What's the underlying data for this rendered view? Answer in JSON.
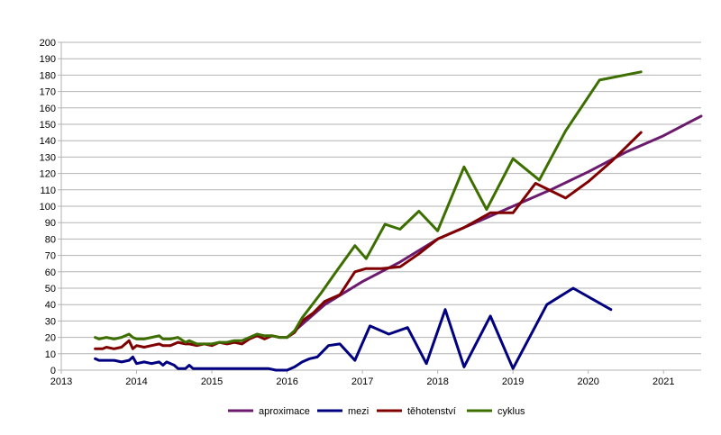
{
  "chart_data": {
    "type": "line",
    "title": "",
    "xlabel": "",
    "ylabel": "",
    "xlim": [
      2013,
      2021.5
    ],
    "ylim": [
      0,
      200
    ],
    "grid": "horizontal",
    "legend_position": "bottom",
    "x_ticks": [
      "2013",
      "2014",
      "2015",
      "2016",
      "2017",
      "2018",
      "2019",
      "2020",
      "2021"
    ],
    "y_ticks": [
      "0",
      "10",
      "20",
      "30",
      "40",
      "50",
      "60",
      "70",
      "80",
      "90",
      "100",
      "110",
      "120",
      "130",
      "140",
      "150",
      "160",
      "170",
      "180",
      "190",
      "200"
    ],
    "series": [
      {
        "name": "aproximace",
        "color": "#6c1a6e",
        "points": [
          [
            2016.0,
            20
          ],
          [
            2016.5,
            40
          ],
          [
            2017.0,
            54
          ],
          [
            2017.5,
            66
          ],
          [
            2018.0,
            80
          ],
          [
            2018.5,
            90
          ],
          [
            2019.0,
            100
          ],
          [
            2019.5,
            110
          ],
          [
            2020.0,
            121
          ],
          [
            2020.5,
            133
          ],
          [
            2021.0,
            143
          ],
          [
            2021.5,
            155
          ]
        ]
      },
      {
        "name": "mezi",
        "color": "#000080",
        "points": [
          [
            2013.45,
            7
          ],
          [
            2013.5,
            6
          ],
          [
            2013.6,
            6
          ],
          [
            2013.7,
            6
          ],
          [
            2013.8,
            5
          ],
          [
            2013.9,
            6
          ],
          [
            2013.95,
            8
          ],
          [
            2014.0,
            4
          ],
          [
            2014.1,
            5
          ],
          [
            2014.2,
            4
          ],
          [
            2014.3,
            5
          ],
          [
            2014.35,
            3
          ],
          [
            2014.4,
            5
          ],
          [
            2014.5,
            3
          ],
          [
            2014.55,
            1
          ],
          [
            2014.65,
            1
          ],
          [
            2014.7,
            3
          ],
          [
            2014.75,
            1
          ],
          [
            2014.85,
            1
          ],
          [
            2014.95,
            1
          ],
          [
            2015.0,
            1
          ],
          [
            2015.05,
            1
          ],
          [
            2015.15,
            1
          ],
          [
            2015.25,
            1
          ],
          [
            2015.35,
            1
          ],
          [
            2015.45,
            1
          ],
          [
            2015.55,
            1
          ],
          [
            2015.65,
            1
          ],
          [
            2015.75,
            1
          ],
          [
            2015.85,
            0
          ],
          [
            2015.95,
            0
          ],
          [
            2016.0,
            0
          ],
          [
            2016.1,
            2
          ],
          [
            2016.2,
            5
          ],
          [
            2016.3,
            7
          ],
          [
            2016.4,
            8
          ],
          [
            2016.55,
            15
          ],
          [
            2016.7,
            16
          ],
          [
            2016.9,
            6
          ],
          [
            2017.1,
            27
          ],
          [
            2017.35,
            22
          ],
          [
            2017.6,
            26
          ],
          [
            2017.85,
            4
          ],
          [
            2018.1,
            37
          ],
          [
            2018.35,
            2
          ],
          [
            2018.7,
            33
          ],
          [
            2019.0,
            1
          ],
          [
            2019.45,
            40
          ],
          [
            2019.8,
            50
          ],
          [
            2020.3,
            37
          ]
        ]
      },
      {
        "name": "těhotenství",
        "color": "#800000",
        "points": [
          [
            2013.45,
            13
          ],
          [
            2013.55,
            13
          ],
          [
            2013.6,
            14
          ],
          [
            2013.7,
            13
          ],
          [
            2013.8,
            14
          ],
          [
            2013.9,
            18
          ],
          [
            2013.95,
            13
          ],
          [
            2014.0,
            15
          ],
          [
            2014.1,
            14
          ],
          [
            2014.2,
            15
          ],
          [
            2014.3,
            16
          ],
          [
            2014.35,
            15
          ],
          [
            2014.45,
            15
          ],
          [
            2014.55,
            17
          ],
          [
            2014.65,
            16
          ],
          [
            2014.7,
            16
          ],
          [
            2014.8,
            15
          ],
          [
            2014.9,
            16
          ],
          [
            2015.0,
            15
          ],
          [
            2015.1,
            17
          ],
          [
            2015.2,
            16
          ],
          [
            2015.3,
            17
          ],
          [
            2015.4,
            16
          ],
          [
            2015.5,
            19
          ],
          [
            2015.6,
            21
          ],
          [
            2015.7,
            19
          ],
          [
            2015.8,
            21
          ],
          [
            2015.9,
            20
          ],
          [
            2016.0,
            20
          ],
          [
            2016.1,
            23
          ],
          [
            2016.2,
            30
          ],
          [
            2016.35,
            35
          ],
          [
            2016.5,
            42
          ],
          [
            2016.7,
            46
          ],
          [
            2016.9,
            60
          ],
          [
            2017.05,
            62
          ],
          [
            2017.25,
            62
          ],
          [
            2017.5,
            63
          ],
          [
            2017.75,
            71
          ],
          [
            2018.0,
            80
          ],
          [
            2018.35,
            87
          ],
          [
            2018.7,
            96
          ],
          [
            2019.0,
            96
          ],
          [
            2019.3,
            114
          ],
          [
            2019.7,
            105
          ],
          [
            2020.0,
            115
          ],
          [
            2020.3,
            127
          ],
          [
            2020.7,
            145
          ]
        ]
      },
      {
        "name": "cyklus",
        "color": "#3c6e00",
        "points": [
          [
            2013.45,
            20
          ],
          [
            2013.5,
            19
          ],
          [
            2013.6,
            20
          ],
          [
            2013.7,
            19
          ],
          [
            2013.8,
            20
          ],
          [
            2013.9,
            22
          ],
          [
            2013.95,
            20
          ],
          [
            2014.0,
            19
          ],
          [
            2014.1,
            19
          ],
          [
            2014.2,
            20
          ],
          [
            2014.3,
            21
          ],
          [
            2014.35,
            19
          ],
          [
            2014.45,
            19
          ],
          [
            2014.55,
            20
          ],
          [
            2014.65,
            17
          ],
          [
            2014.7,
            18
          ],
          [
            2014.8,
            16
          ],
          [
            2014.9,
            16
          ],
          [
            2015.0,
            16
          ],
          [
            2015.1,
            17
          ],
          [
            2015.2,
            17
          ],
          [
            2015.3,
            18
          ],
          [
            2015.4,
            18
          ],
          [
            2015.5,
            20
          ],
          [
            2015.6,
            22
          ],
          [
            2015.7,
            21
          ],
          [
            2015.8,
            21
          ],
          [
            2015.9,
            20
          ],
          [
            2016.0,
            20
          ],
          [
            2016.1,
            24
          ],
          [
            2016.2,
            32
          ],
          [
            2016.45,
            47
          ],
          [
            2016.65,
            60
          ],
          [
            2016.9,
            76
          ],
          [
            2017.05,
            68
          ],
          [
            2017.3,
            89
          ],
          [
            2017.5,
            86
          ],
          [
            2017.75,
            97
          ],
          [
            2018.0,
            85
          ],
          [
            2018.35,
            124
          ],
          [
            2018.65,
            98
          ],
          [
            2019.0,
            129
          ],
          [
            2019.35,
            116
          ],
          [
            2019.7,
            146
          ],
          [
            2020.15,
            177
          ],
          [
            2020.7,
            182
          ]
        ]
      }
    ]
  }
}
